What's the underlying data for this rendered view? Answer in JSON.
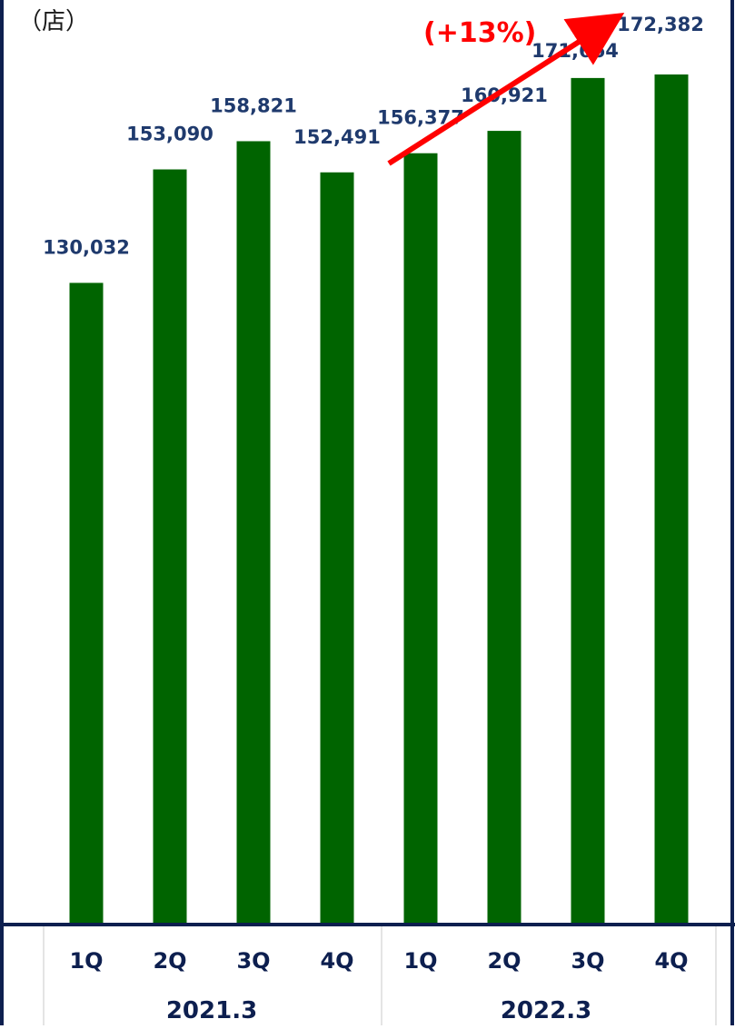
{
  "chart_data": {
    "type": "bar",
    "unit_label": "（店）",
    "categories": [
      "1Q",
      "2Q",
      "3Q",
      "4Q",
      "1Q",
      "2Q",
      "3Q",
      "4Q"
    ],
    "groups": [
      {
        "label": "2021.3",
        "categories": [
          "1Q",
          "2Q",
          "3Q",
          "4Q"
        ]
      },
      {
        "label": "2022.3",
        "categories": [
          "1Q",
          "2Q",
          "3Q",
          "4Q"
        ]
      }
    ],
    "values": [
      130032,
      153090,
      158821,
      152491,
      156377,
      160921,
      171664,
      172382
    ],
    "value_labels": [
      "130,032",
      "153,090",
      "158,821",
      "152,491",
      "156,377",
      "160,921",
      "171,664",
      "172,382"
    ],
    "growth_annotation": "(+13%)",
    "ylim": [
      0,
      180000
    ],
    "grid": false,
    "colors": {
      "bar": "#006400",
      "labels": "#1f3a6d",
      "arrow": "#ff0000",
      "frame": "#0d1f4f"
    }
  }
}
